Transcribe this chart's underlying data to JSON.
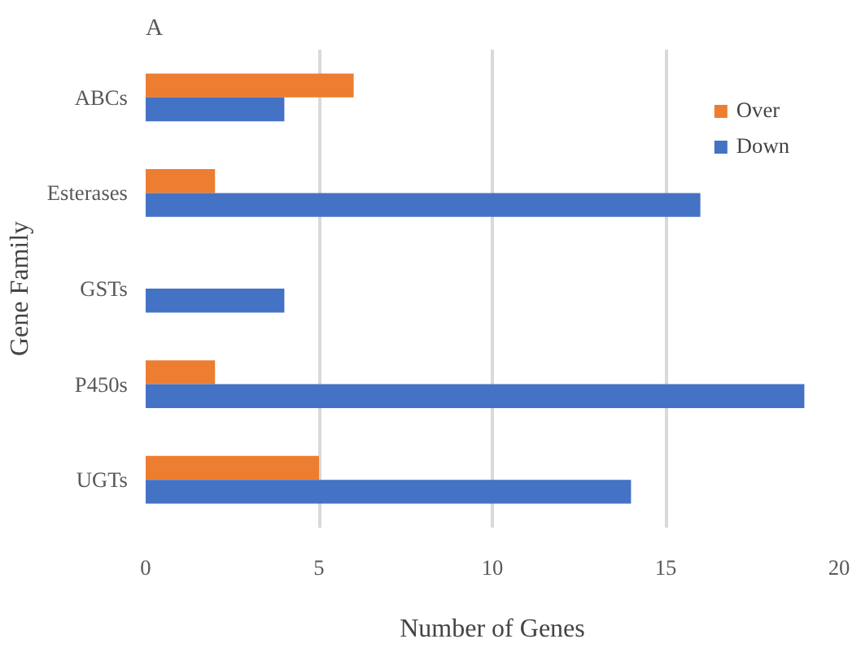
{
  "chart_data": {
    "type": "bar",
    "orientation": "horizontal",
    "xlabel": "Number of Genes",
    "ylabel": "Gene Family",
    "annotations": [
      "A"
    ],
    "categories": [
      "ABCs",
      "Esterases",
      "GSTs",
      "P450s",
      "UGTs"
    ],
    "series": [
      {
        "name": "Over",
        "color": "#ed7d31",
        "values": [
          6,
          2,
          0,
          2,
          5
        ]
      },
      {
        "name": "Down",
        "color": "#4472c4",
        "values": [
          4,
          16,
          4,
          19,
          14
        ]
      }
    ],
    "xlim": [
      0,
      20
    ],
    "xticks": [
      0,
      5,
      10,
      15,
      20
    ],
    "grid": "x",
    "legend": "top right"
  }
}
